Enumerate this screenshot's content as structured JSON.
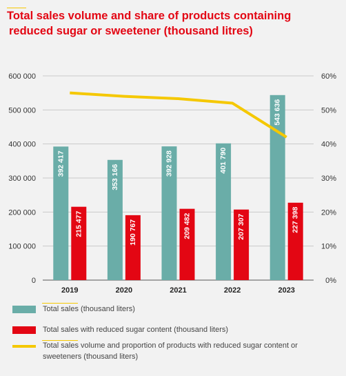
{
  "title_line1": "Total sales volume and share of products containing",
  "title_line2": "reduced sugar or sweetener (thousand litres)",
  "legend": {
    "total": "Total sales (thousand liters)",
    "reduced": "Total sales with reduced sugar content (thousand liters)",
    "line": "Total sales volume and proportion of products with reduced sugar content or sweeteners (thousand liters)"
  },
  "colors": {
    "total": "#6aada8",
    "reduced": "#e30613",
    "line": "#f5c800",
    "title": "#e30613"
  },
  "chart_data": {
    "type": "bar",
    "categories": [
      "2019",
      "2020",
      "2021",
      "2022",
      "2023"
    ],
    "series": [
      {
        "name": "Total sales (thousand liters)",
        "values": [
          392417,
          353166,
          392928,
          401790,
          543636
        ],
        "labels": [
          "392 417",
          "353 166",
          "392 928",
          "401 790",
          "543 636"
        ],
        "color": "#6aada8"
      },
      {
        "name": "Total sales with reduced sugar content (thousand liters)",
        "values": [
          215477,
          190767,
          209482,
          207307,
          227398
        ],
        "labels": [
          "215 477",
          "190 767",
          "209 482",
          "207 307",
          "227 398"
        ],
        "color": "#e30613"
      }
    ],
    "line_series": {
      "name": "Total sales volume and proportion of products with reduced sugar content or sweeteners (thousand liters)",
      "values": [
        55,
        54,
        53.3,
        52,
        42
      ],
      "color": "#f5c800"
    },
    "ylim": [
      0,
      600000
    ],
    "y_ticks": [
      "0",
      "100 000",
      "200 000",
      "300 000",
      "400 000",
      "500 000",
      "600 000"
    ],
    "y2lim": [
      0,
      60
    ],
    "y2_ticks": [
      "0%",
      "10%",
      "20%",
      "30%",
      "40%",
      "50%",
      "60%"
    ],
    "grid": true,
    "legend_position": "bottom"
  }
}
